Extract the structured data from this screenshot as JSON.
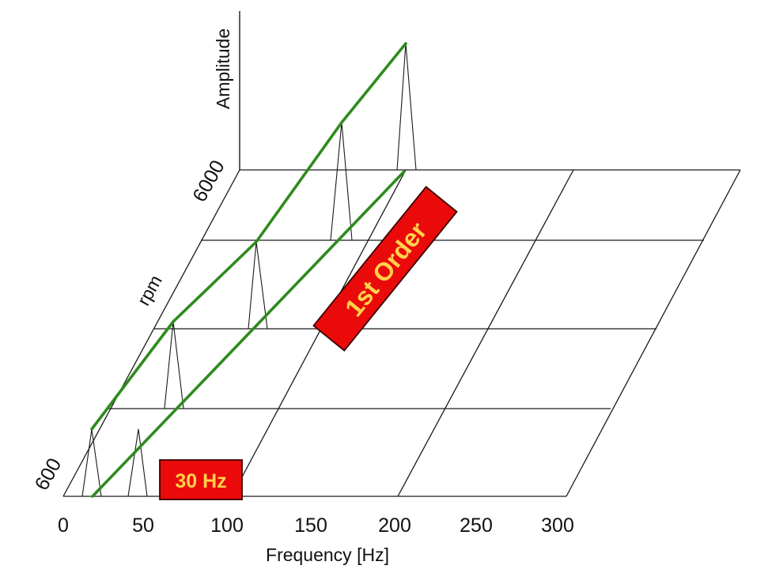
{
  "diagram": {
    "frequency_axis": {
      "title": "Frequency [Hz]",
      "ticks": [
        "0",
        "50",
        "100",
        "150",
        "200",
        "250",
        "300"
      ]
    },
    "rpm_axis": {
      "title": "rpm",
      "ticks": [
        "600",
        "6000"
      ]
    },
    "amplitude_axis": {
      "title": "Amplitude"
    },
    "labels": {
      "order": "1st Order",
      "frequency": "30 Hz"
    },
    "colors": {
      "order_line": "#2e8b1e",
      "label_fill": "#ea0a0a",
      "label_text": "#ffd24a"
    }
  }
}
